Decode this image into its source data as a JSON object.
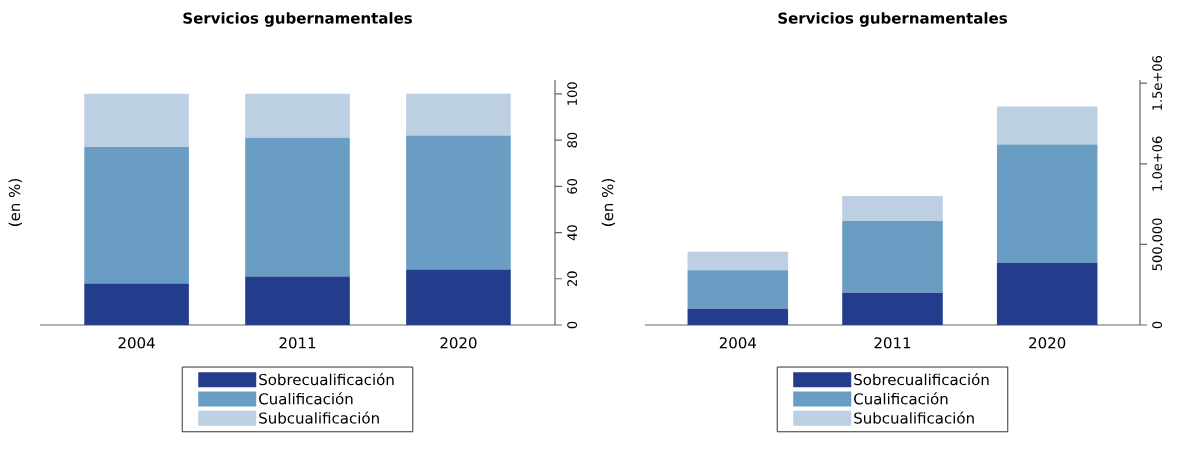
{
  "chart_data": [
    {
      "type": "bar",
      "title": "Servicios gubernamentales",
      "ylabel": "(en %)",
      "categories": [
        "2004",
        "2011",
        "2020"
      ],
      "stacked": true,
      "legend": "bottom",
      "ylim": [
        0,
        106
      ],
      "yticks": [
        0,
        20,
        40,
        60,
        80,
        100
      ],
      "series": [
        {
          "name": "Sobrecualificación",
          "color": "#243c8c",
          "values": [
            18,
            21,
            24
          ]
        },
        {
          "name": "Cualificación",
          "color": "#699dc3",
          "values": [
            59,
            60,
            58
          ]
        },
        {
          "name": "Subcualificación",
          "color": "#bccfe3",
          "values": [
            23,
            19,
            18
          ]
        }
      ]
    },
    {
      "type": "bar",
      "title": "Servicios gubernamentales",
      "ylabel": "(en %)",
      "categories": [
        "2004",
        "2011",
        "2020"
      ],
      "stacked": true,
      "legend": "bottom",
      "ylim": [
        0,
        1520000
      ],
      "yticks": [
        0,
        {
          "value": 500000,
          "label": "500,000"
        },
        {
          "value": 1000000,
          "label": "1.0e+06"
        },
        {
          "value": 1500000,
          "label": "1.5e+06"
        }
      ],
      "series": [
        {
          "name": "Sobrecualificación",
          "color": "#243c8c",
          "values": [
            100000,
            200000,
            385000
          ]
        },
        {
          "name": "Cualificación",
          "color": "#699dc3",
          "values": [
            240000,
            445000,
            735000
          ]
        },
        {
          "name": "Subcualificación",
          "color": "#bccfe3",
          "values": [
            115000,
            155000,
            235000
          ]
        }
      ]
    }
  ]
}
